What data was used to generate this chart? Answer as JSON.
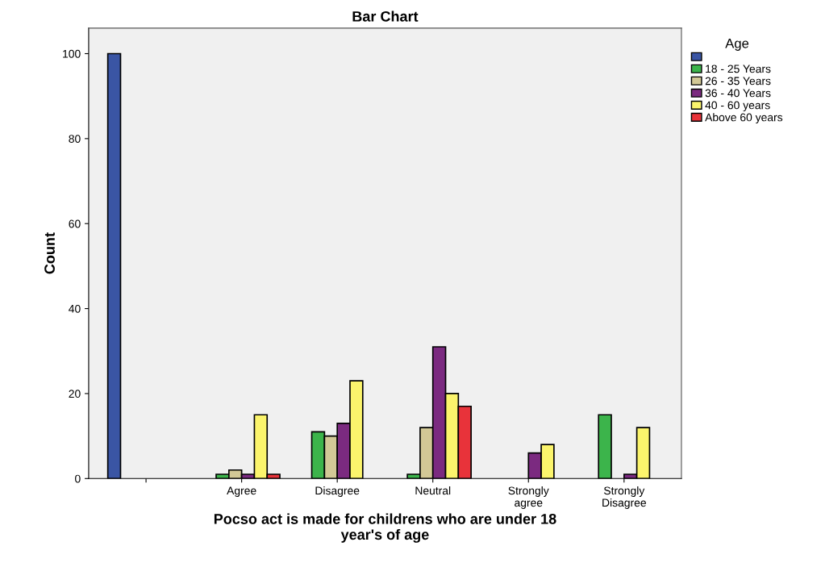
{
  "chart_data": {
    "type": "bar",
    "title": "Bar Chart",
    "xlabel": "Pocso act is made for childrens who are under 18\nyear's of age",
    "ylabel": "Count",
    "legend_title": "Age",
    "categories": [
      null,
      "Agree",
      "Disagree",
      "Neutral",
      "Strongly\nagree",
      "Strongly\nDisagree"
    ],
    "series": [
      {
        "color": "#3a55a4",
        "values": [
          100,
          null,
          null,
          null,
          null,
          null
        ]
      },
      {
        "name": "18 - 25 Years",
        "color": "#3cb44b",
        "values": [
          null,
          1,
          11,
          1,
          null,
          15
        ]
      },
      {
        "name": "26 - 35 Years",
        "color": "#d2c896",
        "values": [
          null,
          2,
          10,
          12,
          null,
          null
        ]
      },
      {
        "name": "36 - 40 Years",
        "color": "#7b2a80",
        "values": [
          null,
          1,
          13,
          31,
          6,
          1
        ]
      },
      {
        "name": "40 - 60 years",
        "color": "#fbf46c",
        "values": [
          null,
          15,
          23,
          20,
          8,
          12
        ]
      },
      {
        "name": "Above 60 years",
        "color": "#e8333a",
        "values": [
          null,
          1,
          null,
          17,
          null,
          null
        ]
      }
    ],
    "ylim": [
      0,
      106
    ],
    "yticks": [
      0,
      20,
      40,
      60,
      80,
      100
    ],
    "grid": false,
    "legend": "top right"
  }
}
